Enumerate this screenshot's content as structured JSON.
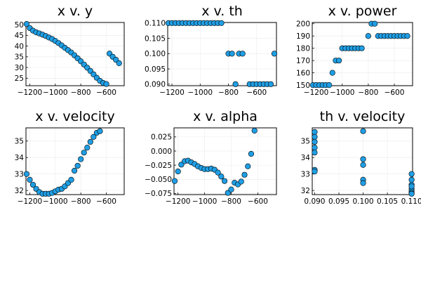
{
  "colors": {
    "marker": "#1f9ee4",
    "marker_stroke": "#000000",
    "background": "#ffffff"
  },
  "chart_data": [
    {
      "type": "scatter",
      "title": "x v. y",
      "xlim": [
        -1230,
        -460
      ],
      "ylim": [
        21.5,
        51
      ],
      "xticks": [
        -1200,
        -1000,
        -800,
        -600
      ],
      "xtick_labels": [
        "−1200",
        "−1000",
        "−800",
        "−600"
      ],
      "yticks": [
        25,
        30,
        35,
        40,
        45,
        50
      ],
      "ytick_labels": [
        "25",
        "30",
        "35",
        "40",
        "45",
        "50"
      ],
      "grid": true,
      "points": [
        [
          -1225,
          50.3
        ],
        [
          -1200,
          48.4
        ],
        [
          -1175,
          47.2
        ],
        [
          -1150,
          46.4
        ],
        [
          -1125,
          45.9
        ],
        [
          -1100,
          45.3
        ],
        [
          -1075,
          44.7
        ],
        [
          -1050,
          44.0
        ],
        [
          -1025,
          43.3
        ],
        [
          -1000,
          42.4
        ],
        [
          -975,
          41.4
        ],
        [
          -950,
          40.3
        ],
        [
          -925,
          39.2
        ],
        [
          -900,
          38.1
        ],
        [
          -875,
          37.0
        ],
        [
          -850,
          35.7
        ],
        [
          -825,
          34.3
        ],
        [
          -800,
          32.9
        ],
        [
          -775,
          31.4
        ],
        [
          -750,
          29.9
        ],
        [
          -725,
          28.4
        ],
        [
          -700,
          26.8
        ],
        [
          -675,
          25.2
        ],
        [
          -650,
          23.8
        ],
        [
          -625,
          22.8
        ],
        [
          -600,
          22.3
        ],
        [
          -575,
          36.5
        ],
        [
          -550,
          35.0
        ],
        [
          -525,
          33.6
        ],
        [
          -500,
          32.0
        ]
      ]
    },
    {
      "type": "scatter",
      "title": "x v. th",
      "xlim": [
        -1230,
        -460
      ],
      "ylim": [
        0.0895,
        0.1102
      ],
      "xticks": [
        -1200,
        -1000,
        -800,
        -600
      ],
      "xtick_labels": [
        "−1200",
        "−1000",
        "−800",
        "−600"
      ],
      "yticks": [
        0.09,
        0.095,
        0.1,
        0.105,
        0.11
      ],
      "ytick_labels": [
        "0.090",
        "0.095",
        "0.100",
        "0.105",
        "0.110"
      ],
      "grid": true,
      "points": [
        [
          -1225,
          0.11
        ],
        [
          -1200,
          0.11
        ],
        [
          -1175,
          0.11
        ],
        [
          -1150,
          0.11
        ],
        [
          -1125,
          0.11
        ],
        [
          -1100,
          0.11
        ],
        [
          -1075,
          0.11
        ],
        [
          -1050,
          0.11
        ],
        [
          -1025,
          0.11
        ],
        [
          -1000,
          0.11
        ],
        [
          -975,
          0.11
        ],
        [
          -950,
          0.11
        ],
        [
          -925,
          0.11
        ],
        [
          -900,
          0.11
        ],
        [
          -875,
          0.11
        ],
        [
          -850,
          0.11
        ],
        [
          -800,
          0.1
        ],
        [
          -775,
          0.1
        ],
        [
          -750,
          0.09
        ],
        [
          -725,
          0.1
        ],
        [
          -700,
          0.1
        ],
        [
          -650,
          0.09
        ],
        [
          -625,
          0.09
        ],
        [
          -600,
          0.09
        ],
        [
          -575,
          0.09
        ],
        [
          -550,
          0.09
        ],
        [
          -525,
          0.09
        ],
        [
          -500,
          0.09
        ],
        [
          -475,
          0.1
        ]
      ]
    },
    {
      "type": "scatter",
      "title": "x v. power",
      "xlim": [
        -1230,
        -460
      ],
      "ylim": [
        149.5,
        201
      ],
      "xticks": [
        -1200,
        -1000,
        -800,
        -600
      ],
      "xtick_labels": [
        "−1200",
        "−1000",
        "−800",
        "−600"
      ],
      "yticks": [
        150,
        160,
        170,
        180,
        190,
        200
      ],
      "ytick_labels": [
        "150",
        "160",
        "170",
        "180",
        "190",
        "200"
      ],
      "grid": true,
      "points": [
        [
          -1225,
          150
        ],
        [
          -1200,
          150
        ],
        [
          -1175,
          150
        ],
        [
          -1150,
          150
        ],
        [
          -1125,
          150
        ],
        [
          -1100,
          150
        ],
        [
          -1075,
          160
        ],
        [
          -1050,
          170
        ],
        [
          -1025,
          170
        ],
        [
          -1000,
          180
        ],
        [
          -975,
          180
        ],
        [
          -950,
          180
        ],
        [
          -925,
          180
        ],
        [
          -900,
          180
        ],
        [
          -875,
          180
        ],
        [
          -850,
          180
        ],
        [
          -800,
          190
        ],
        [
          -775,
          200
        ],
        [
          -750,
          200
        ],
        [
          -725,
          190
        ],
        [
          -700,
          190
        ],
        [
          -675,
          190
        ],
        [
          -650,
          190
        ],
        [
          -625,
          190
        ],
        [
          -600,
          190
        ],
        [
          -575,
          190
        ],
        [
          -550,
          190
        ],
        [
          -525,
          190
        ],
        [
          -500,
          190
        ]
      ]
    },
    {
      "type": "scatter",
      "title": "x v. velocity",
      "xlim": [
        -1230,
        -460
      ],
      "ylim": [
        31.75,
        35.8
      ],
      "xticks": [
        -1200,
        -1000,
        -800,
        -600
      ],
      "xtick_labels": [
        "−1200",
        "−1000",
        "−800",
        "−600"
      ],
      "yticks": [
        32,
        33,
        34,
        35
      ],
      "ytick_labels": [
        "32",
        "33",
        "34",
        "35"
      ],
      "grid": true,
      "points": [
        [
          -1225,
          33.0
        ],
        [
          -1200,
          32.65
        ],
        [
          -1175,
          32.35
        ],
        [
          -1150,
          32.1
        ],
        [
          -1125,
          31.9
        ],
        [
          -1100,
          31.8
        ],
        [
          -1075,
          31.8
        ],
        [
          -1050,
          31.8
        ],
        [
          -1025,
          31.85
        ],
        [
          -1000,
          31.95
        ],
        [
          -975,
          32.05
        ],
        [
          -950,
          32.1
        ],
        [
          -925,
          32.25
        ],
        [
          -900,
          32.45
        ],
        [
          -875,
          32.65
        ],
        [
          -850,
          33.2
        ],
        [
          -825,
          33.5
        ],
        [
          -800,
          33.9
        ],
        [
          -775,
          34.3
        ],
        [
          -750,
          34.6
        ],
        [
          -725,
          34.95
        ],
        [
          -700,
          35.25
        ],
        [
          -675,
          35.5
        ],
        [
          -650,
          35.6
        ]
      ]
    },
    {
      "type": "scatter",
      "title": "x v. alpha",
      "xlim": [
        -1230,
        -460
      ],
      "ylim": [
        -0.077,
        0.041
      ],
      "xticks": [
        -1200,
        -1000,
        -800,
        -600
      ],
      "xtick_labels": [
        "−1200",
        "−1000",
        "−800",
        "−600"
      ],
      "yticks": [
        -0.075,
        -0.05,
        -0.025,
        0.0,
        0.025
      ],
      "ytick_labels": [
        "−0.075",
        "−0.050",
        "−0.025",
        "0.000",
        "0.025"
      ],
      "grid": true,
      "points": [
        [
          -1225,
          -0.053
        ],
        [
          -1200,
          -0.036
        ],
        [
          -1175,
          -0.024
        ],
        [
          -1150,
          -0.018
        ],
        [
          -1125,
          -0.017
        ],
        [
          -1100,
          -0.02
        ],
        [
          -1075,
          -0.023
        ],
        [
          -1050,
          -0.027
        ],
        [
          -1025,
          -0.03
        ],
        [
          -1000,
          -0.032
        ],
        [
          -975,
          -0.032
        ],
        [
          -950,
          -0.031
        ],
        [
          -925,
          -0.033
        ],
        [
          -900,
          -0.038
        ],
        [
          -875,
          -0.045
        ],
        [
          -850,
          -0.053
        ],
        [
          -825,
          -0.074
        ],
        [
          -800,
          -0.068
        ],
        [
          -775,
          -0.056
        ],
        [
          -750,
          -0.059
        ],
        [
          -725,
          -0.054
        ],
        [
          -700,
          -0.042
        ],
        [
          -675,
          -0.027
        ],
        [
          -650,
          -0.005
        ],
        [
          -625,
          0.036
        ]
      ]
    },
    {
      "type": "scatter",
      "title": "th v. velocity",
      "xlim": [
        0.0895,
        0.1102
      ],
      "ylim": [
        31.75,
        35.8
      ],
      "xticks": [
        0.09,
        0.095,
        0.1,
        0.105,
        0.11
      ],
      "xtick_labels": [
        "0.090",
        "0.095",
        "0.100",
        "0.105",
        "0.110"
      ],
      "yticks": [
        32,
        33,
        34,
        35
      ],
      "ytick_labels": [
        "32",
        "33",
        "34",
        "35"
      ],
      "grid": true,
      "points": [
        [
          0.09,
          35.55
        ],
        [
          0.09,
          35.25
        ],
        [
          0.09,
          34.95
        ],
        [
          0.09,
          34.6
        ],
        [
          0.09,
          34.3
        ],
        [
          0.09,
          33.25
        ],
        [
          0.09,
          33.15
        ],
        [
          0.1,
          35.6
        ],
        [
          0.1,
          33.9
        ],
        [
          0.1,
          33.55
        ],
        [
          0.1,
          32.65
        ],
        [
          0.1,
          32.45
        ],
        [
          0.11,
          33.0
        ],
        [
          0.11,
          32.65
        ],
        [
          0.11,
          32.35
        ],
        [
          0.11,
          32.1
        ],
        [
          0.11,
          31.95
        ],
        [
          0.11,
          31.85
        ],
        [
          0.11,
          31.8
        ],
        [
          0.11,
          32.25
        ]
      ]
    }
  ]
}
